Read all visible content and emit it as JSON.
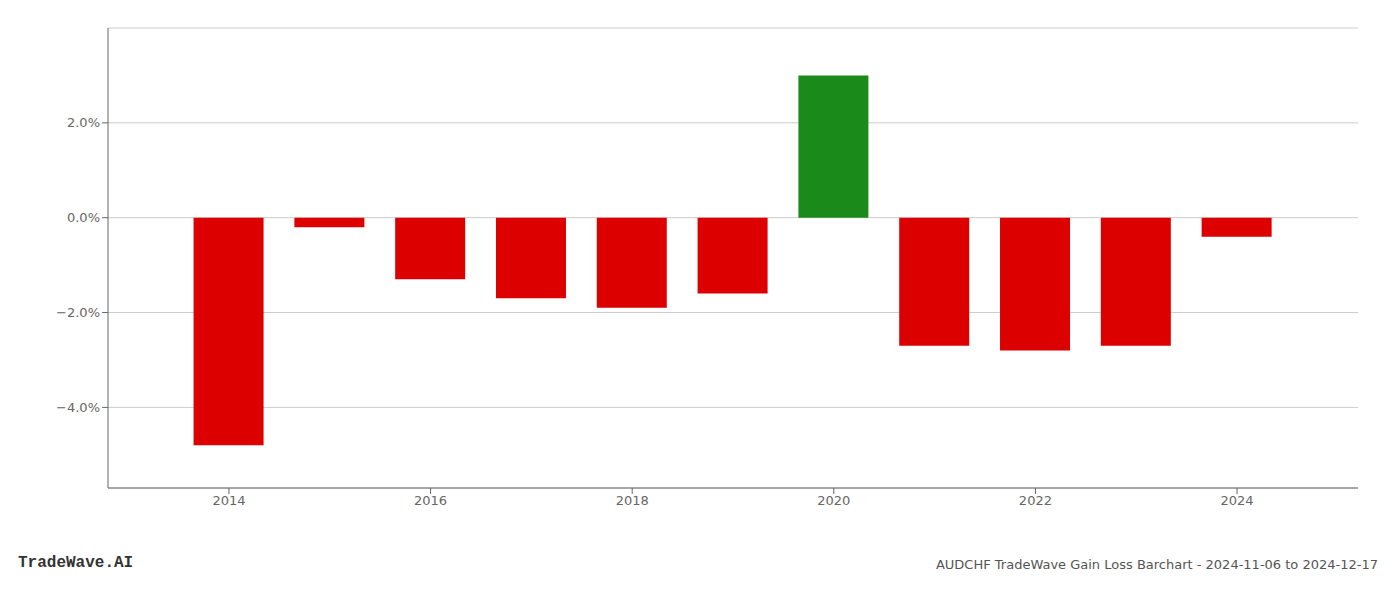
{
  "chart_data": {
    "type": "bar",
    "x": [
      2014,
      2015,
      2016,
      2017,
      2018,
      2019,
      2020,
      2021,
      2022,
      2023,
      2024
    ],
    "values": [
      -0.048,
      -0.002,
      -0.013,
      -0.017,
      -0.019,
      -0.016,
      0.03,
      -0.027,
      -0.028,
      -0.027,
      -0.004
    ],
    "colors": [
      "#dd0000",
      "#dd0000",
      "#dd0000",
      "#dd0000",
      "#dd0000",
      "#dd0000",
      "#1a8a1a",
      "#dd0000",
      "#dd0000",
      "#dd0000",
      "#dd0000"
    ],
    "xlim": [
      2012.8,
      2025.2
    ],
    "xticks": [
      2014,
      2016,
      2018,
      2020,
      2022,
      2024
    ],
    "ylim": [
      -0.057,
      0.04
    ],
    "yticks": [
      {
        "value": -0.04,
        "label": "−4.0%"
      },
      {
        "value": -0.02,
        "label": "−2.0%"
      },
      {
        "value": 0.0,
        "label": "0.0%"
      },
      {
        "value": 0.02,
        "label": "2.0%"
      }
    ],
    "grid": true,
    "annotations": [
      "TradeWave.AI",
      "AUDCHF TradeWave Gain Loss Barchart - 2024-11-06 to 2024-12-17"
    ]
  }
}
